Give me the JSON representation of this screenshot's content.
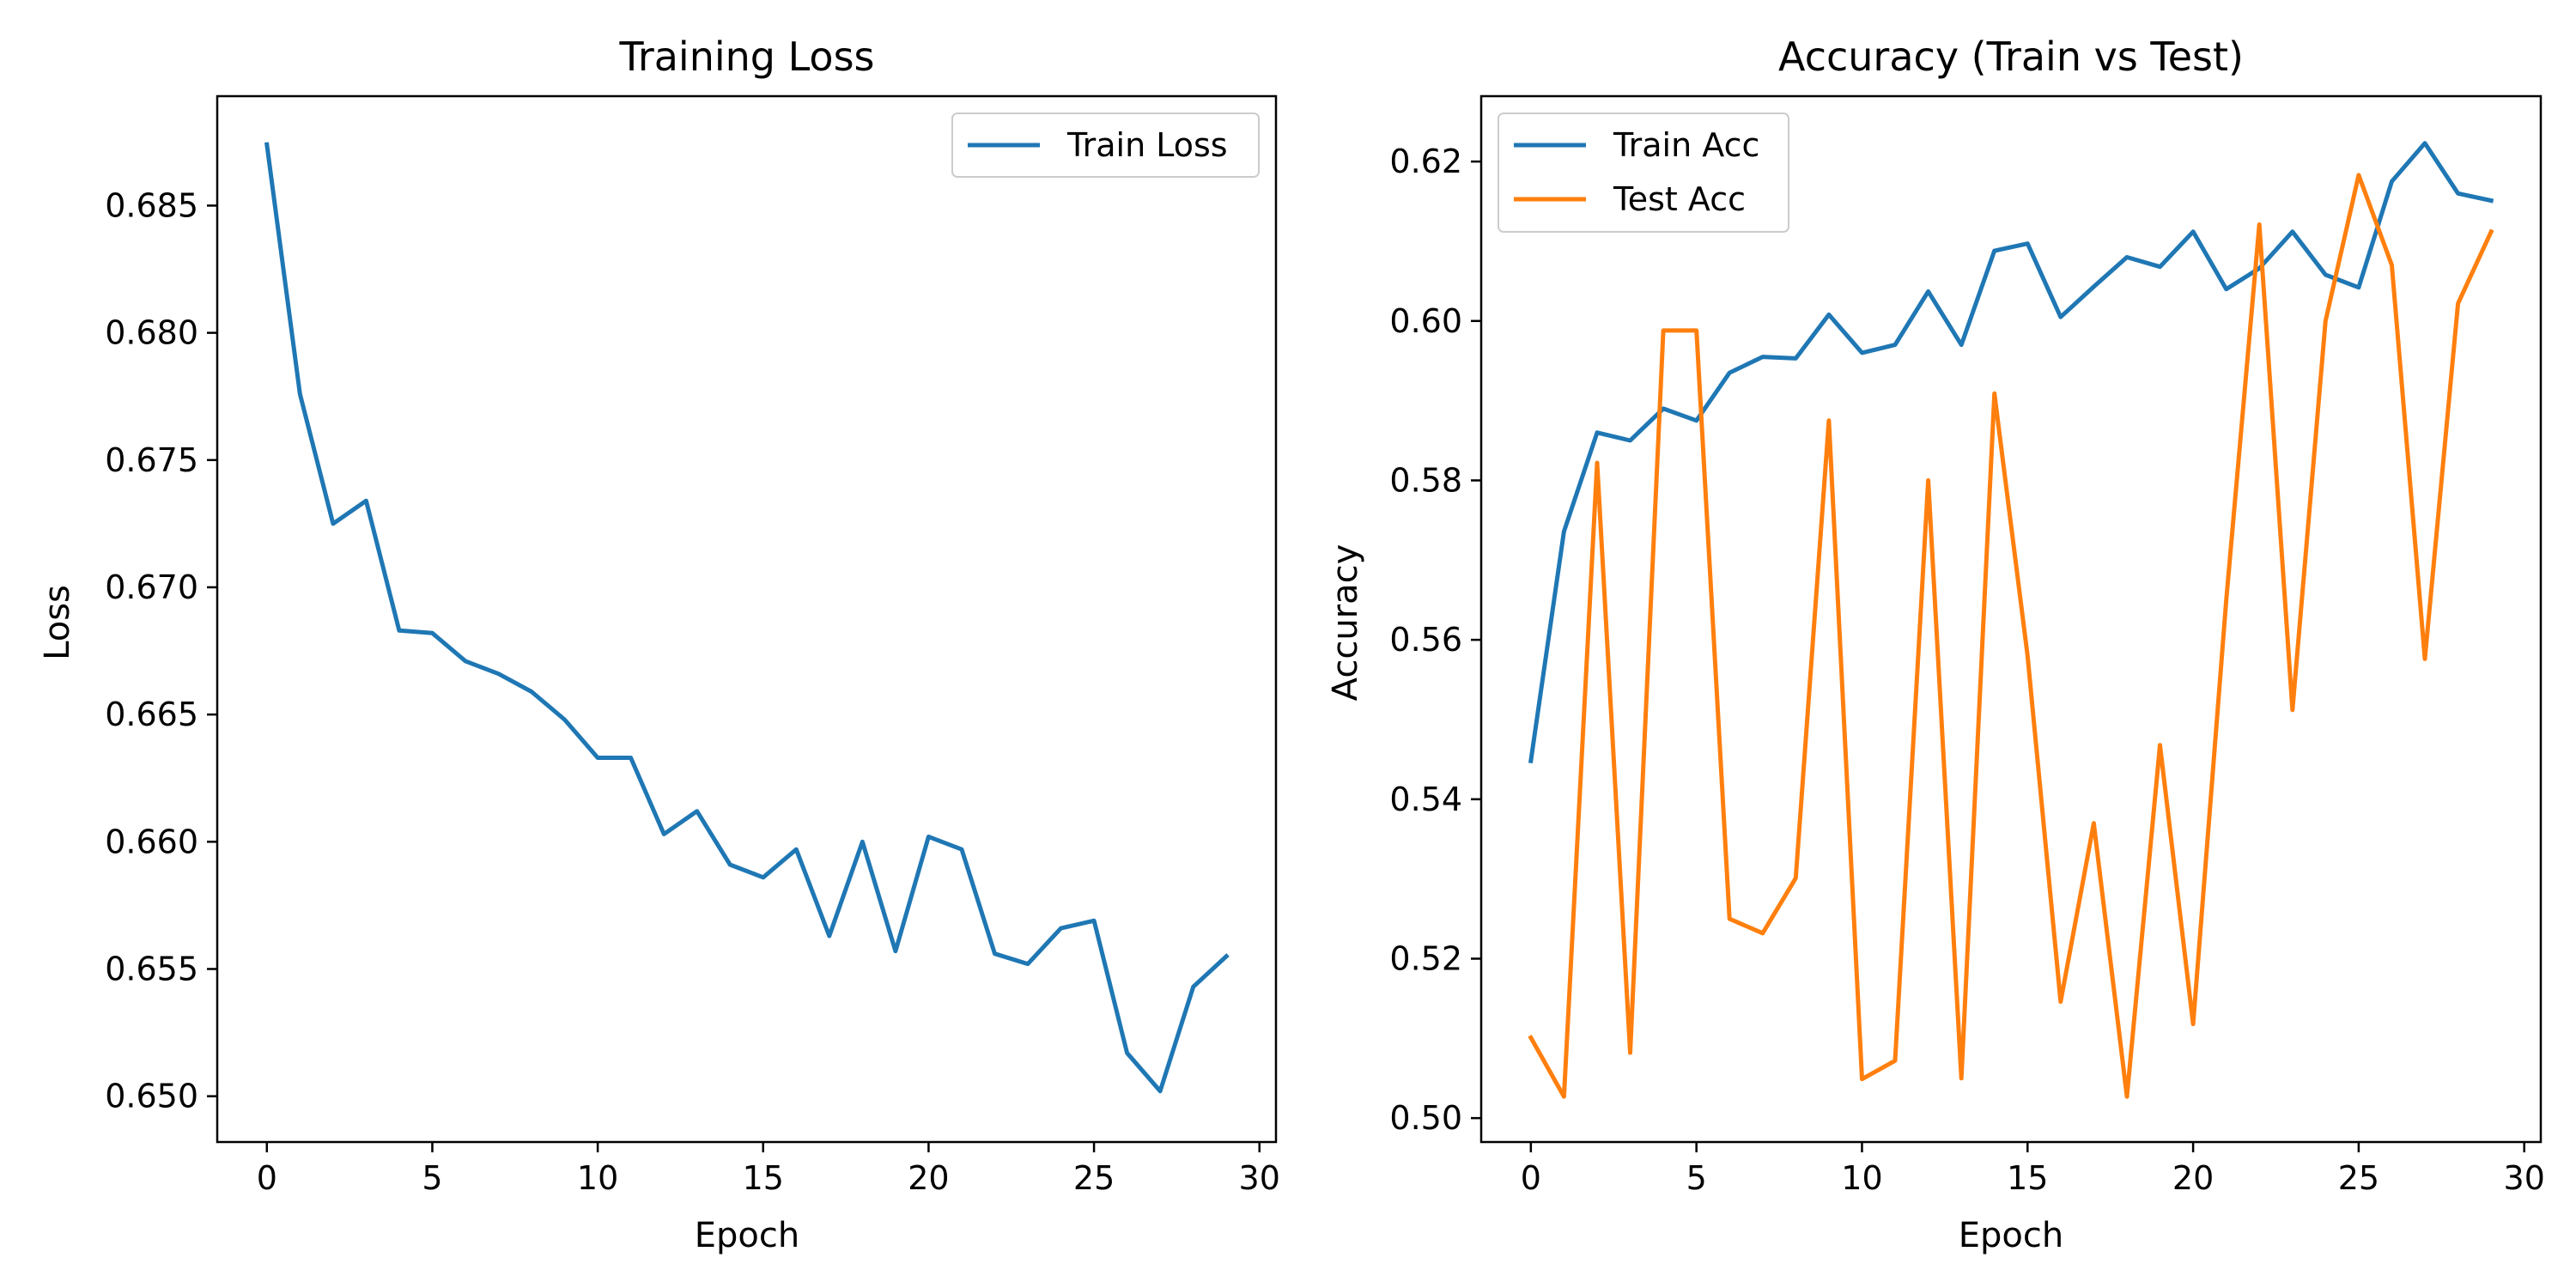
{
  "colors": {
    "train": "#1f77b4",
    "test": "#ff7f0e",
    "axes": "#000000",
    "legend_edge": "#cccccc"
  },
  "chart_data": [
    {
      "type": "line",
      "title": "Training Loss",
      "xlabel": "Epoch",
      "ylabel": "Loss",
      "xlim": [
        -1.5,
        30.5
      ],
      "ylim": [
        0.6482,
        0.6893
      ],
      "xticks": [
        0,
        5,
        10,
        15,
        20,
        25,
        30
      ],
      "xtick_labels": [
        "0",
        "5",
        "10",
        "15",
        "20",
        "25",
        "30"
      ],
      "yticks": [
        0.65,
        0.655,
        0.66,
        0.665,
        0.67,
        0.675,
        0.68,
        0.685
      ],
      "ytick_labels": [
        "0.650",
        "0.655",
        "0.660",
        "0.665",
        "0.670",
        "0.675",
        "0.680",
        "0.685"
      ],
      "grid": false,
      "legend_position": "top-right",
      "x": [
        0,
        1,
        2,
        3,
        4,
        5,
        6,
        7,
        8,
        9,
        10,
        11,
        12,
        13,
        14,
        15,
        16,
        17,
        18,
        19,
        20,
        21,
        22,
        23,
        24,
        25,
        26,
        27,
        28,
        29
      ],
      "series": [
        {
          "name": "Train Loss",
          "color": "#1f77b4",
          "values": [
            0.6874,
            0.6776,
            0.6725,
            0.6734,
            0.6683,
            0.6682,
            0.6671,
            0.6666,
            0.6659,
            0.6648,
            0.6633,
            0.6633,
            0.6603,
            0.6612,
            0.6591,
            0.6586,
            0.6597,
            0.6563,
            0.66,
            0.6557,
            0.6602,
            0.6597,
            0.6556,
            0.6552,
            0.6566,
            0.6569,
            0.6517,
            0.6502,
            0.6543,
            0.6555
          ]
        }
      ]
    },
    {
      "type": "line",
      "title": "Accuracy (Train vs Test)",
      "xlabel": "Epoch",
      "ylabel": "Accuracy",
      "xlim": [
        -1.5,
        30.5
      ],
      "ylim": [
        0.497,
        0.6282
      ],
      "xticks": [
        0,
        5,
        10,
        15,
        20,
        25,
        30
      ],
      "xtick_labels": [
        "0",
        "5",
        "10",
        "15",
        "20",
        "25",
        "30"
      ],
      "yticks": [
        0.5,
        0.52,
        0.54,
        0.56,
        0.58,
        0.6,
        0.62
      ],
      "ytick_labels": [
        "0.50",
        "0.52",
        "0.54",
        "0.56",
        "0.58",
        "0.60",
        "0.62"
      ],
      "grid": false,
      "legend_position": "top-left",
      "x": [
        0,
        1,
        2,
        3,
        4,
        5,
        6,
        7,
        8,
        9,
        10,
        11,
        12,
        13,
        14,
        15,
        16,
        17,
        18,
        19,
        20,
        21,
        22,
        23,
        24,
        25,
        26,
        27,
        28,
        29
      ],
      "series": [
        {
          "name": "Train Acc",
          "color": "#1f77b4",
          "values": [
            0.5448,
            0.5736,
            0.586,
            0.585,
            0.589,
            0.5875,
            0.5935,
            0.5955,
            0.5953,
            0.6008,
            0.596,
            0.597,
            0.6037,
            0.597,
            0.6088,
            0.6097,
            0.6005,
            0.6043,
            0.608,
            0.6068,
            0.6112,
            0.604,
            0.6066,
            0.6112,
            0.6058,
            0.6042,
            0.6175,
            0.6223,
            0.616,
            0.6151
          ]
        },
        {
          "name": "Test Acc",
          "color": "#ff7f0e",
          "values": [
            0.5101,
            0.5027,
            0.5822,
            0.5082,
            0.5988,
            0.5988,
            0.525,
            0.5232,
            0.5301,
            0.5875,
            0.5049,
            0.5072,
            0.58,
            0.505,
            0.5909,
            0.558,
            0.5146,
            0.537,
            0.5027,
            0.5468,
            0.5118,
            0.565,
            0.6121,
            0.5512,
            0.6,
            0.6183,
            0.607,
            0.5576,
            0.6022,
            0.6112
          ]
        }
      ]
    }
  ]
}
